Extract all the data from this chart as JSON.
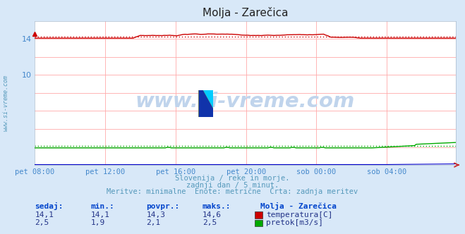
{
  "title": "Molja - Zarečica",
  "bg_color": "#d8e8f8",
  "plot_bg_color": "#ffffff",
  "grid_color": "#ffaaaa",
  "tick_label_color": "#4488cc",
  "title_color": "#222222",
  "watermark_text": "www.si-vreme.com",
  "watermark_color": "#c0d4ec",
  "footnote1": "Slovenija / reke in morje.",
  "footnote2": "zadnji dan / 5 minut.",
  "footnote3": "Meritve: minimalne  Enote: metrične  Črta: zadnja meritev",
  "footnote_color": "#5599bb",
  "table_headers": [
    "sedaj:",
    "min.:",
    "povpr.:",
    "maks.:"
  ],
  "table_header_color": "#0044cc",
  "station_name": "Molja - Zarečica",
  "station_name_color": "#0044cc",
  "rows": [
    {
      "sedaj": "14,1",
      "min": "14,1",
      "povpr": "14,3",
      "maks": "14,6",
      "color": "#cc0000",
      "label": "temperatura[C]"
    },
    {
      "sedaj": "2,5",
      "min": "1,9",
      "povpr": "2,1",
      "maks": "2,5",
      "color": "#00aa00",
      "label": "pretok[m3/s]"
    }
  ],
  "temp_min": 14.1,
  "temp_max": 14.6,
  "temp_avg": 14.3,
  "flow_min": 1.9,
  "flow_max": 2.5,
  "flow_avg": 2.1,
  "temp_color": "#cc0000",
  "flow_color": "#00aa00",
  "height_color": "#0000cc",
  "side_text": "www.si-vreme.com",
  "side_text_color": "#5599bb"
}
